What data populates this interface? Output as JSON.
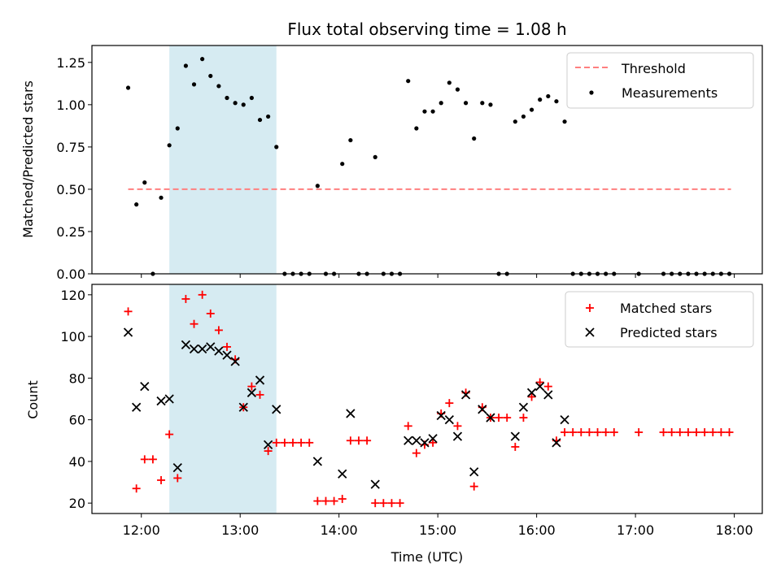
{
  "title": "Flux total observing time = 1.08 h",
  "top": {
    "ylabel": "Matched/Predicted stars",
    "ylim": [
      0,
      1.35
    ],
    "yticks": [
      "0.00",
      "0.25",
      "0.50",
      "0.75",
      "1.00",
      "1.25"
    ],
    "legend": {
      "threshold": "Threshold",
      "measurements": "Measurements"
    }
  },
  "bottom": {
    "ylabel": "Count",
    "xlabel": "Time (UTC)",
    "ylim": [
      15,
      125
    ],
    "yticks": [
      "20",
      "40",
      "60",
      "80",
      "100",
      "120"
    ],
    "xticks": [
      "12:00",
      "13:00",
      "14:00",
      "15:00",
      "16:00",
      "17:00",
      "18:00"
    ],
    "legend": {
      "matched": "Matched stars",
      "predicted": "Predicted stars"
    }
  },
  "chart_data": {
    "type": "scatter",
    "x_unit": "time (UTC)",
    "xlim": [
      "11:30",
      "18:17"
    ],
    "shaded_span": [
      "12:17",
      "13:22"
    ],
    "threshold": {
      "value": 0.5,
      "x_range": [
        "11:52",
        "17:58"
      ],
      "color": "#ff7f7f"
    },
    "colors": {
      "matched": "#ff0000",
      "predicted": "#000000",
      "span": "#add8e6"
    },
    "ratio": {
      "x": [
        "11:52",
        "11:57",
        "12:02",
        "12:07",
        "12:12",
        "12:17",
        "12:22",
        "12:27",
        "12:32",
        "12:37",
        "12:42",
        "12:47",
        "12:52",
        "12:57",
        "13:02",
        "13:07",
        "13:12",
        "13:17",
        "13:22",
        "13:27",
        "13:32",
        "13:37",
        "13:42",
        "13:47",
        "13:52",
        "13:57",
        "14:02",
        "14:07",
        "14:12",
        "14:17",
        "14:22",
        "14:27",
        "14:32",
        "14:37",
        "14:42",
        "14:47",
        "14:52",
        "14:57",
        "15:02",
        "15:07",
        "15:12",
        "15:17",
        "15:22",
        "15:27",
        "15:32",
        "15:37",
        "15:42",
        "15:47",
        "15:52",
        "15:57",
        "16:02",
        "16:07",
        "16:12",
        "16:17",
        "16:22",
        "16:27",
        "16:32",
        "16:37",
        "16:42",
        "16:47",
        "17:02",
        "17:17",
        "17:22",
        "17:27",
        "17:32",
        "17:37",
        "17:42",
        "17:47",
        "17:52",
        "17:57"
      ],
      "y": [
        1.1,
        0.41,
        0.54,
        0.0,
        0.45,
        0.76,
        0.86,
        1.23,
        1.12,
        1.27,
        1.17,
        1.11,
        1.04,
        1.01,
        1.0,
        1.04,
        0.91,
        0.93,
        0.75,
        0.0,
        0.0,
        0.0,
        0.0,
        0.52,
        0.0,
        0.0,
        0.65,
        0.79,
        0.0,
        0.0,
        0.69,
        0.0,
        0.0,
        0.0,
        1.14,
        0.86,
        0.96,
        0.96,
        1.01,
        1.13,
        1.09,
        1.01,
        0.8,
        1.01,
        1.0,
        0.0,
        0.0,
        0.9,
        0.93,
        0.97,
        1.03,
        1.05,
        1.02,
        0.9,
        0.0,
        0.0,
        0.0,
        0.0,
        0.0,
        0.0,
        0.0,
        0.0,
        0.0,
        0.0,
        0.0,
        0.0,
        0.0,
        0.0,
        0.0,
        0.0
      ]
    },
    "matched": {
      "x": [
        "11:52",
        "11:57",
        "12:02",
        "12:07",
        "12:12",
        "12:17",
        "12:22",
        "12:27",
        "12:32",
        "12:37",
        "12:42",
        "12:47",
        "12:52",
        "12:57",
        "13:02",
        "13:07",
        "13:12",
        "13:17",
        "13:22",
        "13:27",
        "13:32",
        "13:37",
        "13:42",
        "13:47",
        "13:52",
        "13:57",
        "14:02",
        "14:07",
        "14:12",
        "14:17",
        "14:22",
        "14:27",
        "14:32",
        "14:37",
        "14:42",
        "14:47",
        "14:52",
        "14:57",
        "15:02",
        "15:07",
        "15:12",
        "15:17",
        "15:22",
        "15:27",
        "15:32",
        "15:37",
        "15:42",
        "15:47",
        "15:52",
        "15:57",
        "16:02",
        "16:07",
        "16:12",
        "16:17",
        "16:22",
        "16:27",
        "16:32",
        "16:37",
        "16:42",
        "16:47",
        "17:02",
        "17:17",
        "17:22",
        "17:27",
        "17:32",
        "17:37",
        "17:42",
        "17:47",
        "17:52",
        "17:57"
      ],
      "y": [
        112,
        27,
        41,
        41,
        31,
        53,
        32,
        118,
        106,
        120,
        111,
        103,
        95,
        89,
        66,
        76,
        72,
        45,
        49,
        49,
        49,
        49,
        49,
        21,
        21,
        21,
        22,
        50,
        50,
        50,
        20,
        20,
        20,
        20,
        57,
        44,
        48,
        49,
        63,
        68,
        57,
        73,
        28,
        66,
        61,
        61,
        61,
        47,
        61,
        71,
        78,
        76,
        50,
        54,
        54,
        54,
        54,
        54,
        54,
        54,
        54,
        54,
        54,
        54,
        54,
        54,
        54,
        54,
        54,
        54
      ]
    },
    "predicted": {
      "x": [
        "11:52",
        "11:57",
        "12:02",
        "12:12",
        "12:17",
        "12:22",
        "12:27",
        "12:32",
        "12:37",
        "12:42",
        "12:47",
        "12:52",
        "12:57",
        "13:02",
        "13:07",
        "13:12",
        "13:17",
        "13:22",
        "13:47",
        "14:02",
        "14:07",
        "14:22",
        "14:42",
        "14:47",
        "14:52",
        "14:57",
        "15:02",
        "15:07",
        "15:12",
        "15:17",
        "15:22",
        "15:27",
        "15:32",
        "15:47",
        "15:52",
        "15:57",
        "16:02",
        "16:07",
        "16:12",
        "16:17"
      ],
      "y": [
        102,
        66,
        76,
        69,
        70,
        37,
        96,
        94,
        94,
        95,
        93,
        91,
        88,
        66,
        73,
        79,
        48,
        65,
        40,
        34,
        63,
        29,
        50,
        50,
        49,
        51,
        62,
        60,
        52,
        72,
        35,
        65,
        61,
        52,
        66,
        73,
        76,
        72,
        49,
        60
      ]
    }
  }
}
